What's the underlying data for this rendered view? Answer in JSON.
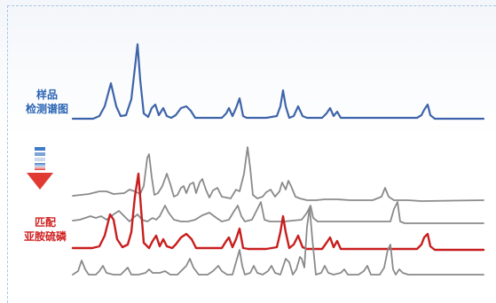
{
  "labels": {
    "sample_line1": "样品",
    "sample_line2": "检测谱图",
    "match_line1": "匹配",
    "match_line2": "亚胺硫磷"
  },
  "colors": {
    "sample_trace": "#3e64aa",
    "match_trace": "#c81e1e",
    "reference_trace": "#8a8a8a",
    "frame_dash": "#a9c6e6"
  }
}
